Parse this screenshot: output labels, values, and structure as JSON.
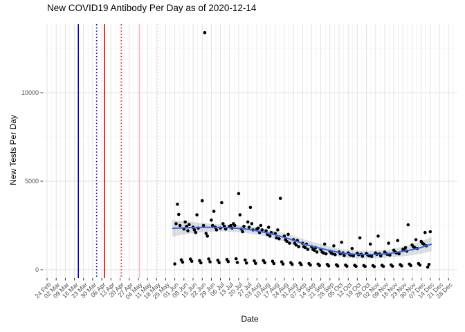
{
  "chart_data": {
    "type": "scatter",
    "title": "New COVID19 Antibody Per Day as of 2020-12-14",
    "xlabel": "Date",
    "ylabel": "New Tests Per Day",
    "legend": "none",
    "grid": "major-and-minor",
    "point_color": "#000000",
    "x_axis": {
      "origin_date": "2020-02-24",
      "tick_interval_days": 7,
      "tick_labels": [
        "24 Feb",
        "02 Mar",
        "09 Mar",
        "16 Mar",
        "23 Mar",
        "30 Mar",
        "06 Apr",
        "13 Apr",
        "20 Apr",
        "27 Apr",
        "04 May",
        "11 May",
        "18 May",
        "25 May",
        "01 Jun",
        "08 Jun",
        "15 Jun",
        "22 Jun",
        "29 Jun",
        "06 Jul",
        "13 Jul",
        "20 Jul",
        "27 Jul",
        "03 Aug",
        "10 Aug",
        "17 Aug",
        "24 Aug",
        "31 Aug",
        "07 Sep",
        "14 Sep",
        "21 Sep",
        "28 Sep",
        "05 Oct",
        "12 Oct",
        "19 Oct",
        "26 Oct",
        "02 Nov",
        "09 Nov",
        "16 Nov",
        "23 Nov",
        "30 Nov",
        "07 Dec",
        "14 Dec",
        "21 Dec",
        "28 Dec"
      ]
    },
    "y_axis": {
      "tick_labels": [
        "0",
        "5000",
        "10000"
      ],
      "major_ticks": [
        0,
        5000,
        10000
      ],
      "minor_ticks": [
        2500,
        7500,
        12500
      ],
      "ylim": [
        -470,
        13870
      ]
    },
    "event_lines": [
      {
        "approx_date": "19 Mar",
        "day": 24,
        "color": "#0000BB",
        "style": "solid"
      },
      {
        "approx_date": "02 Apr",
        "day": 38,
        "color": "#0000BB",
        "style": "dotted"
      },
      {
        "approx_date": "08 Apr",
        "day": 44,
        "color": "#DD0000",
        "style": "solid"
      },
      {
        "approx_date": "21 Apr",
        "day": 57,
        "color": "#DD2222",
        "style": "dotted"
      },
      {
        "approx_date": "05 May",
        "day": 71,
        "color": "#F5BFCA",
        "style": "solid"
      },
      {
        "approx_date": "19 May",
        "day": 85,
        "color": "#F7CCD6",
        "style": "dotted"
      }
    ],
    "smooth_line": {
      "color": "#3366EE",
      "points": [
        [
          96,
          2340
        ],
        [
          110,
          2380
        ],
        [
          126,
          2400
        ],
        [
          140,
          2370
        ],
        [
          155,
          2270
        ],
        [
          170,
          2060
        ],
        [
          185,
          1760
        ],
        [
          200,
          1400
        ],
        [
          215,
          1120
        ],
        [
          230,
          910
        ],
        [
          245,
          860
        ],
        [
          260,
          900
        ],
        [
          272,
          1030
        ],
        [
          283,
          1180
        ],
        [
          295,
          1450
        ]
      ]
    },
    "confidence_band": {
      "color": "#808080",
      "opacity": 0.25,
      "points": [
        [
          96,
          1870,
          2810
        ],
        [
          110,
          2050,
          2700
        ],
        [
          126,
          2150,
          2600
        ],
        [
          140,
          2150,
          2550
        ],
        [
          155,
          2050,
          2450
        ],
        [
          170,
          1850,
          2250
        ],
        [
          185,
          1500,
          2000
        ],
        [
          200,
          1150,
          1650
        ],
        [
          215,
          900,
          1350
        ],
        [
          230,
          680,
          1120
        ],
        [
          245,
          640,
          1080
        ],
        [
          260,
          680,
          1120
        ],
        [
          272,
          760,
          1300
        ],
        [
          283,
          850,
          1500
        ],
        [
          295,
          1050,
          1850
        ]
      ]
    },
    "points_note": "day = days since 2020-02-24; values are New Tests Per Day",
    "points": [
      [
        98,
        330
      ],
      [
        99,
        2600
      ],
      [
        100,
        3700
      ],
      [
        101,
        3125
      ],
      [
        102,
        2500
      ],
      [
        103,
        560
      ],
      [
        104,
        430
      ],
      [
        105,
        2300
      ],
      [
        106,
        2700
      ],
      [
        107,
        2450
      ],
      [
        108,
        2200
      ],
      [
        109,
        2550
      ],
      [
        110,
        600
      ],
      [
        111,
        480
      ],
      [
        112,
        2400
      ],
      [
        113,
        2250
      ],
      [
        114,
        2100
      ],
      [
        115,
        3100
      ],
      [
        116,
        2350
      ],
      [
        117,
        520
      ],
      [
        118,
        390
      ],
      [
        119,
        3900
      ],
      [
        120,
        2500
      ],
      [
        121,
        13390
      ],
      [
        122,
        2050
      ],
      [
        123,
        1900
      ],
      [
        124,
        610
      ],
      [
        125,
        450
      ],
      [
        126,
        2800
      ],
      [
        127,
        2500
      ],
      [
        128,
        3300
      ],
      [
        129,
        2400
      ],
      [
        130,
        2250
      ],
      [
        131,
        540
      ],
      [
        132,
        400
      ],
      [
        133,
        2350
      ],
      [
        134,
        3790
      ],
      [
        135,
        2600
      ],
      [
        136,
        2450
      ],
      [
        137,
        2300
      ],
      [
        138,
        580
      ],
      [
        139,
        460
      ],
      [
        140,
        2450
      ],
      [
        141,
        2500
      ],
      [
        142,
        2350
      ],
      [
        143,
        2600
      ],
      [
        144,
        2500
      ],
      [
        145,
        620
      ],
      [
        146,
        410
      ],
      [
        147,
        4300
      ],
      [
        148,
        3100
      ],
      [
        149,
        2300
      ],
      [
        150,
        2150
      ],
      [
        151,
        2450
      ],
      [
        152,
        550
      ],
      [
        153,
        380
      ],
      [
        154,
        2700
      ],
      [
        155,
        2400
      ],
      [
        156,
        3520
      ],
      [
        157,
        2600
      ],
      [
        158,
        2250
      ],
      [
        159,
        500
      ],
      [
        160,
        360
      ],
      [
        161,
        2300
      ],
      [
        162,
        2350
      ],
      [
        163,
        2100
      ],
      [
        164,
        2500
      ],
      [
        165,
        2250
      ],
      [
        166,
        520
      ],
      [
        167,
        400
      ],
      [
        168,
        2200
      ],
      [
        169,
        2000
      ],
      [
        170,
        2400
      ],
      [
        171,
        1900
      ],
      [
        172,
        2100
      ],
      [
        173,
        480
      ],
      [
        174,
        350
      ],
      [
        175,
        2050
      ],
      [
        176,
        1800
      ],
      [
        177,
        2250
      ],
      [
        178,
        1750
      ],
      [
        179,
        4030
      ],
      [
        180,
        450
      ],
      [
        181,
        320
      ],
      [
        182,
        1900
      ],
      [
        183,
        1700
      ],
      [
        184,
        1600
      ],
      [
        185,
        2000
      ],
      [
        186,
        1500
      ],
      [
        187,
        400
      ],
      [
        188,
        300
      ],
      [
        189,
        1700
      ],
      [
        190,
        1500
      ],
      [
        191,
        1400
      ],
      [
        192,
        1650
      ],
      [
        193,
        1300
      ],
      [
        194,
        380
      ],
      [
        195,
        280
      ],
      [
        196,
        1500
      ],
      [
        197,
        1300
      ],
      [
        198,
        1250
      ],
      [
        199,
        1450
      ],
      [
        200,
        1150
      ],
      [
        201,
        350
      ],
      [
        202,
        260
      ],
      [
        203,
        1300
      ],
      [
        204,
        1150
      ],
      [
        205,
        1100
      ],
      [
        206,
        1250
      ],
      [
        207,
        1000
      ],
      [
        208,
        320
      ],
      [
        209,
        240
      ],
      [
        210,
        1150
      ],
      [
        211,
        1000
      ],
      [
        212,
        950
      ],
      [
        213,
        1450
      ],
      [
        214,
        900
      ],
      [
        215,
        300
      ],
      [
        216,
        220
      ],
      [
        217,
        1050
      ],
      [
        218,
        950
      ],
      [
        219,
        900
      ],
      [
        220,
        1350
      ],
      [
        221,
        850
      ],
      [
        222,
        280
      ],
      [
        223,
        210
      ],
      [
        224,
        1000
      ],
      [
        225,
        900
      ],
      [
        226,
        1550
      ],
      [
        227,
        950
      ],
      [
        228,
        800
      ],
      [
        229,
        260
      ],
      [
        230,
        200
      ],
      [
        231,
        950
      ],
      [
        232,
        870
      ],
      [
        233,
        820
      ],
      [
        234,
        1200
      ],
      [
        235,
        780
      ],
      [
        236,
        250
      ],
      [
        237,
        190
      ],
      [
        238,
        930
      ],
      [
        239,
        850
      ],
      [
        240,
        1800
      ],
      [
        241,
        880
      ],
      [
        242,
        760
      ],
      [
        243,
        240
      ],
      [
        244,
        185
      ],
      [
        245,
        920
      ],
      [
        246,
        840
      ],
      [
        247,
        790
      ],
      [
        248,
        1450
      ],
      [
        249,
        750
      ],
      [
        250,
        235
      ],
      [
        251,
        180
      ],
      [
        252,
        950
      ],
      [
        253,
        870
      ],
      [
        254,
        1900
      ],
      [
        255,
        900
      ],
      [
        256,
        780
      ],
      [
        257,
        250
      ],
      [
        258,
        190
      ],
      [
        259,
        1000
      ],
      [
        260,
        920
      ],
      [
        261,
        870
      ],
      [
        262,
        1500
      ],
      [
        263,
        830
      ],
      [
        264,
        270
      ],
      [
        265,
        200
      ],
      [
        266,
        1100
      ],
      [
        267,
        1000
      ],
      [
        268,
        950
      ],
      [
        269,
        1650
      ],
      [
        270,
        900
      ],
      [
        271,
        290
      ],
      [
        272,
        220
      ],
      [
        273,
        1150
      ],
      [
        274,
        1100
      ],
      [
        275,
        1250
      ],
      [
        276,
        1050
      ],
      [
        277,
        2540
      ],
      [
        278,
        320
      ],
      [
        279,
        240
      ],
      [
        280,
        1400
      ],
      [
        281,
        1300
      ],
      [
        282,
        1250
      ],
      [
        283,
        1700
      ],
      [
        284,
        1200
      ],
      [
        285,
        350
      ],
      [
        286,
        260
      ],
      [
        287,
        1600
      ],
      [
        288,
        1500
      ],
      [
        289,
        1450
      ],
      [
        290,
        2100
      ],
      [
        291,
        1350
      ],
      [
        292,
        150
      ],
      [
        293,
        300
      ],
      [
        294,
        2150
      ]
    ],
    "colors": {
      "grid_major": "#e2e2e2",
      "grid_minor": "#f0f0f0",
      "tick_label": "#4d4d4d",
      "tick_mark": "#333333"
    }
  }
}
